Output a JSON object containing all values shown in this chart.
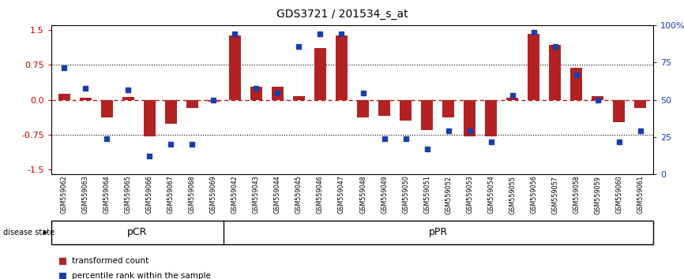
{
  "title": "GDS3721 / 201534_s_at",
  "samples": [
    "GSM559062",
    "GSM559063",
    "GSM559064",
    "GSM559065",
    "GSM559066",
    "GSM559067",
    "GSM559068",
    "GSM559069",
    "GSM559042",
    "GSM559043",
    "GSM559044",
    "GSM559045",
    "GSM559046",
    "GSM559047",
    "GSM559048",
    "GSM559049",
    "GSM559050",
    "GSM559051",
    "GSM559052",
    "GSM559053",
    "GSM559054",
    "GSM559055",
    "GSM559056",
    "GSM559057",
    "GSM559058",
    "GSM559059",
    "GSM559060",
    "GSM559061"
  ],
  "transformed_count": [
    0.12,
    0.04,
    -0.38,
    0.06,
    -0.78,
    -0.52,
    -0.18,
    -0.04,
    1.38,
    0.28,
    0.28,
    0.08,
    1.1,
    1.38,
    -0.38,
    -0.35,
    -0.45,
    -0.65,
    -0.38,
    -0.78,
    -0.78,
    0.04,
    1.42,
    1.18,
    0.68,
    0.08,
    -0.48,
    -0.18
  ],
  "percentile_rank": [
    73,
    58,
    22,
    57,
    10,
    18,
    18,
    50,
    97,
    58,
    55,
    88,
    97,
    97,
    55,
    22,
    22,
    15,
    28,
    28,
    20,
    53,
    98,
    88,
    68,
    50,
    20,
    28
  ],
  "n_pcr": 8,
  "n_ppr": 20,
  "bar_color": "#B22222",
  "dot_color": "#1A3EAA",
  "pCR_color": "#AADDAA",
  "pPR_color": "#55CC55",
  "ylim_left": [
    -1.6,
    1.6
  ],
  "ylim_right": [
    0,
    100
  ],
  "yticks_left": [
    -1.5,
    -0.75,
    0.0,
    0.75,
    1.5
  ],
  "yticks_right": [
    0,
    25,
    50,
    75,
    100
  ],
  "bg_color": "#CCCCCC",
  "legend_red_label": "transformed count",
  "legend_blue_label": "percentile rank within the sample"
}
